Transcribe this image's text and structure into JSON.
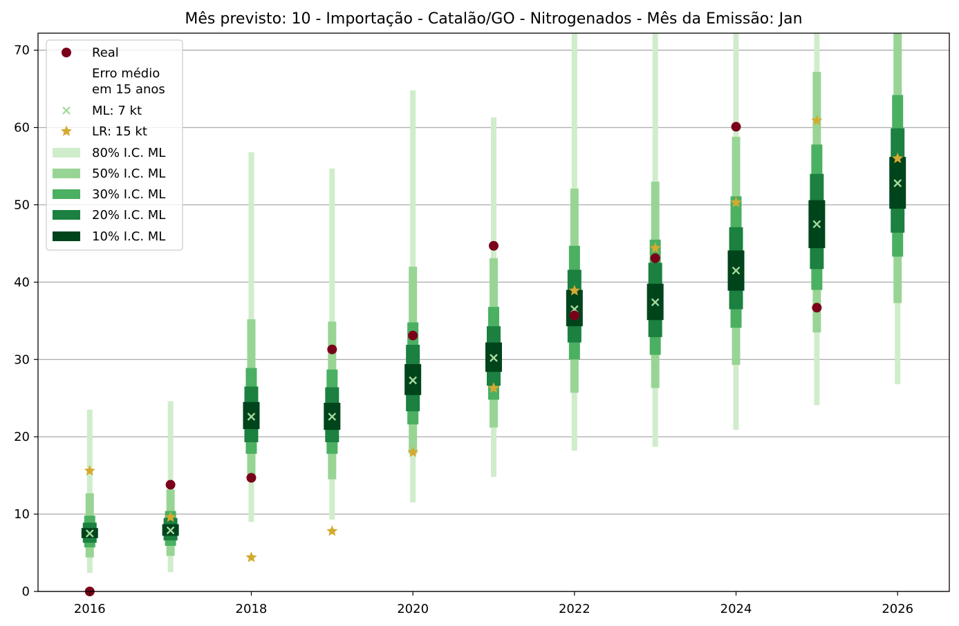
{
  "chart_data": {
    "type": "scatter",
    "title": "Mês previsto: 10 - Importação - Catalão/GO - Nitrogenados - Mês da Emissão: Jan",
    "xlabel": "",
    "ylabel": "",
    "xlim": [
      2015.36,
      2026.64
    ],
    "ylim": [
      0,
      72.2
    ],
    "x_ticks": [
      2016,
      2018,
      2020,
      2022,
      2024,
      2026
    ],
    "y_ticks": [
      0,
      10,
      20,
      30,
      40,
      50,
      60,
      70
    ],
    "grid": "y",
    "legend_position": "top-left",
    "x": [
      2016,
      2017,
      2018,
      2019,
      2020,
      2021,
      2022,
      2023,
      2024,
      2025,
      2026
    ],
    "colors": {
      "real": "#7a0019",
      "ml": "#a6dba0",
      "lr": "#d4aa30",
      "ci80": "#d0edcb",
      "ci50": "#98d594",
      "ci30": "#4bb062",
      "ci20": "#1b8040",
      "ci10": "#00441b",
      "grid": "#b0b0b0"
    },
    "legend": [
      {
        "label": "Real",
        "kind": "dot",
        "color": "#7a0019"
      },
      {
        "label": "Erro médio",
        "kind": "none"
      },
      {
        "label": "em 15 anos",
        "kind": "none"
      },
      {
        "label": "ML: 7 kt",
        "kind": "x",
        "color": "#a6dba0"
      },
      {
        "label": "LR: 15 kt",
        "kind": "star",
        "color": "#d4aa30"
      },
      {
        "label": "80% I.C. ML",
        "kind": "patch",
        "color": "#d0edcb"
      },
      {
        "label": "50% I.C. ML",
        "kind": "patch",
        "color": "#98d594"
      },
      {
        "label": "30% I.C. ML",
        "kind": "patch",
        "color": "#4bb062"
      },
      {
        "label": "20% I.C. ML",
        "kind": "patch",
        "color": "#1b8040"
      },
      {
        "label": "10% I.C. ML",
        "kind": "patch",
        "color": "#00441b"
      }
    ],
    "series": [
      {
        "name": "Real",
        "values": [
          0.0,
          13.8,
          14.7,
          31.3,
          33.1,
          44.7,
          35.7,
          43.1,
          60.1,
          36.7,
          null
        ]
      },
      {
        "name": "ML: 7 kt",
        "values": [
          7.5,
          7.9,
          22.6,
          22.6,
          27.3,
          30.2,
          36.5,
          37.4,
          41.5,
          47.5,
          52.8
        ]
      },
      {
        "name": "LR: 15 kt",
        "values": [
          15.6,
          9.6,
          4.4,
          7.8,
          18.0,
          26.3,
          38.9,
          44.4,
          50.3,
          60.9,
          56.0
        ]
      }
    ],
    "intervals": {
      "80": {
        "low": [
          2.4,
          2.5,
          9.0,
          9.3,
          11.5,
          14.8,
          18.2,
          18.7,
          20.9,
          24.1,
          26.8
        ],
        "high": [
          23.5,
          24.6,
          56.8,
          54.7,
          64.8,
          61.3,
          72.2,
          72.2,
          72.2,
          72.2,
          72.2
        ]
      },
      "50": {
        "low": [
          4.4,
          4.6,
          14.6,
          14.5,
          17.8,
          21.2,
          25.7,
          26.3,
          29.3,
          33.5,
          37.3
        ],
        "high": [
          12.7,
          13.2,
          35.2,
          34.9,
          42.0,
          43.1,
          52.1,
          53.0,
          58.8,
          67.2,
          72.2
        ]
      },
      "30": {
        "low": [
          5.7,
          5.9,
          17.8,
          17.8,
          21.6,
          24.8,
          30.0,
          30.6,
          34.1,
          39.0,
          43.3
        ]
      },
      "30h": {
        "high": [
          9.8,
          10.4,
          28.9,
          28.7,
          34.8,
          36.8,
          44.7,
          45.5,
          51.1,
          57.8,
          64.2
        ]
      },
      "20": {
        "low": [
          6.3,
          6.6,
          19.3,
          19.3,
          23.3,
          26.6,
          32.2,
          32.9,
          36.5,
          41.7,
          46.4
        ],
        "high": [
          8.9,
          9.5,
          26.5,
          26.4,
          31.9,
          34.3,
          41.6,
          42.5,
          47.1,
          54.0,
          59.9
        ]
      },
      "10": {
        "low": [
          6.9,
          7.2,
          21.0,
          20.9,
          25.4,
          28.4,
          34.3,
          35.1,
          38.9,
          44.4,
          49.5
        ],
        "high": [
          8.2,
          8.7,
          24.5,
          24.4,
          29.4,
          32.2,
          39.0,
          39.8,
          44.1,
          50.6,
          56.2
        ]
      }
    }
  }
}
